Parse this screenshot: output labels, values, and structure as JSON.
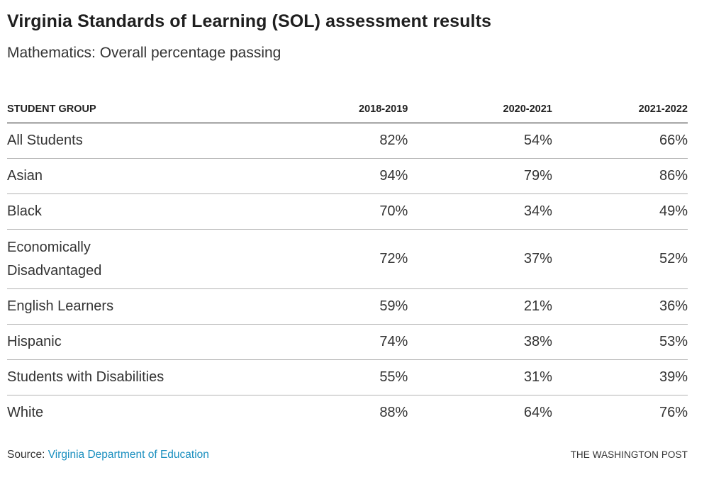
{
  "header": {
    "title": "Virginia Standards of Learning (SOL) assessment results",
    "subtitle": "Mathematics: Overall percentage passing"
  },
  "chart_data": {
    "type": "table",
    "title": "Virginia Standards of Learning (SOL) assessment results",
    "subtitle": "Mathematics: Overall percentage passing",
    "columns": [
      "STUDENT GROUP",
      "2018-2019",
      "2020-2021",
      "2021-2022"
    ],
    "rows": [
      {
        "group": "All Students",
        "values": [
          "82%",
          "54%",
          "66%"
        ]
      },
      {
        "group": "Asian",
        "values": [
          "94%",
          "79%",
          "86%"
        ]
      },
      {
        "group": "Black",
        "values": [
          "70%",
          "34%",
          "49%"
        ]
      },
      {
        "group": "Economically Disadvantaged",
        "values": [
          "72%",
          "37%",
          "52%"
        ]
      },
      {
        "group": "English Learners",
        "values": [
          "59%",
          "21%",
          "36%"
        ]
      },
      {
        "group": "Hispanic",
        "values": [
          "74%",
          "38%",
          "53%"
        ]
      },
      {
        "group": "Students with Disabilities",
        "values": [
          "55%",
          "31%",
          "39%"
        ]
      },
      {
        "group": "White",
        "values": [
          "88%",
          "64%",
          "76%"
        ]
      }
    ]
  },
  "footer": {
    "source_label": "Source: ",
    "source_link": "Virginia Department of Education",
    "credit": "THE WASHINGTON POST"
  },
  "colors": {
    "link": "#1a8fbf",
    "text": "#222222",
    "divider": "#b3b3b3"
  }
}
